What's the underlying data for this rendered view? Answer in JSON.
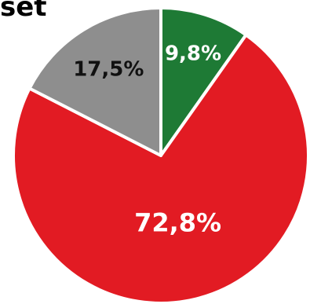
{
  "header": {
    "title_fragment": "set"
  },
  "chart_data": {
    "type": "pie",
    "title": "",
    "start": "12 o'clock",
    "direction": "clockwise",
    "slices": [
      {
        "label": "9,8%",
        "value": 9.8,
        "color": "#1e7a35",
        "label_color": "#ffffff"
      },
      {
        "label": "72,8%",
        "value": 72.8,
        "color": "#e21b23",
        "label_color": "#ffffff"
      },
      {
        "label": "17,5%",
        "value": 17.5,
        "color": "#8e8e8e",
        "label_color": "#111111"
      }
    ]
  }
}
